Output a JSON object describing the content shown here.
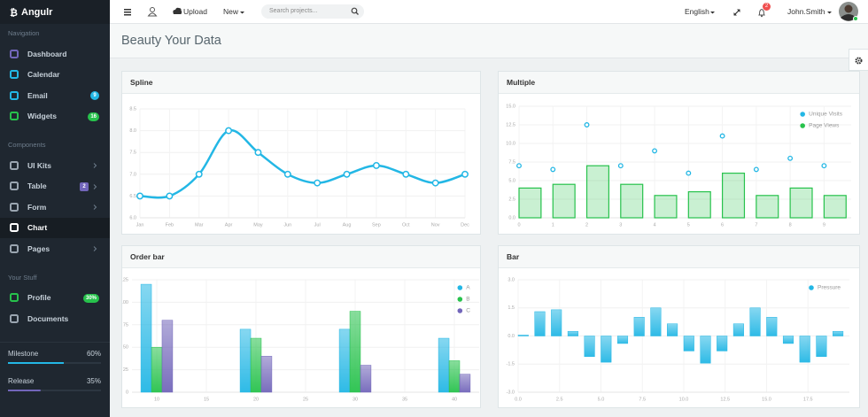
{
  "brand": "Angulr",
  "header": {
    "upload": "Upload",
    "new": "New",
    "search_placeholder": "Search projects...",
    "language": "English",
    "notification_count": "2",
    "user": "John.Smith"
  },
  "sidebar": {
    "sections": [
      {
        "title": "Navigation",
        "items": [
          {
            "label": "Dashboard"
          },
          {
            "label": "Calendar"
          },
          {
            "label": "Email",
            "badge": "9"
          },
          {
            "label": "Widgets",
            "badge": "16"
          }
        ]
      },
      {
        "title": "Components",
        "items": [
          {
            "label": "UI Kits",
            "submenu": true
          },
          {
            "label": "Table",
            "badge": "2",
            "submenu": true
          },
          {
            "label": "Form",
            "submenu": true
          },
          {
            "label": "Chart",
            "active": true
          },
          {
            "label": "Pages",
            "submenu": true
          }
        ]
      },
      {
        "title": "Your Stuff",
        "items": [
          {
            "label": "Profile",
            "badge": "30%"
          },
          {
            "label": "Documents"
          }
        ]
      }
    ],
    "progress": [
      {
        "label": "Milestone",
        "value": 60,
        "value_label": "60%",
        "color": "#23b7e5"
      },
      {
        "label": "Release",
        "value": 35,
        "value_label": "35%",
        "color": "#7266ba"
      }
    ]
  },
  "page_title": "Beauty Your Data",
  "chart_data": [
    {
      "type": "line",
      "title": "Spline",
      "categories": [
        "Jan",
        "Feb",
        "Mar",
        "Apr",
        "May",
        "Jun",
        "Jul",
        "Aug",
        "Sep",
        "Oct",
        "Nov",
        "Dec"
      ],
      "values": [
        6.5,
        6.5,
        7.0,
        8.0,
        7.5,
        7.0,
        6.8,
        7.0,
        7.2,
        7.0,
        6.8,
        7.0
      ],
      "color": "#23b7e5",
      "ylim": [
        6,
        8.5
      ],
      "yticks": [
        {
          "value": 6,
          "label": "6.0"
        },
        {
          "value": 6.5,
          "label": "6.5"
        },
        {
          "value": 7,
          "label": "7.0"
        },
        {
          "value": 7.5,
          "label": "7.5"
        },
        {
          "value": 8,
          "label": "8.0"
        },
        {
          "value": 8.5,
          "label": "8.5"
        }
      ],
      "grid": true
    },
    {
      "type": "combo",
      "title": "Multiple",
      "x": [
        0,
        1,
        2,
        3,
        4,
        5,
        6,
        7,
        8,
        9
      ],
      "xlim": [
        0,
        9.8
      ],
      "xticks": [
        0,
        1,
        2,
        3,
        4,
        5,
        6,
        7,
        8,
        9
      ],
      "ylim": [
        0,
        15
      ],
      "yticks": [
        {
          "value": 0,
          "label": "0.0"
        },
        {
          "value": 2.5,
          "label": "2.5"
        },
        {
          "value": 5,
          "label": "5.0"
        },
        {
          "value": 7.5,
          "label": "7.5"
        },
        {
          "value": 10,
          "label": "10.0"
        },
        {
          "value": 12.5,
          "label": "12.5"
        },
        {
          "value": 15,
          "label": "15.0"
        }
      ],
      "series": [
        {
          "name": "Unique Visits",
          "type": "scatter",
          "color": "#23b7e5",
          "values": [
            7,
            6.5,
            12.5,
            7,
            9,
            6,
            11,
            6.5,
            8,
            7
          ]
        },
        {
          "name": "Page Views",
          "type": "bar",
          "color": "#27c24c",
          "values": [
            4,
            4.5,
            7,
            4.5,
            3,
            3.5,
            6,
            3,
            4,
            3
          ]
        }
      ],
      "legend": "top-right",
      "grid": true
    },
    {
      "type": "bar",
      "title": "Order bar",
      "x": [
        10,
        20,
        30,
        40
      ],
      "xlim": [
        7.5,
        42.5
      ],
      "xticks": [
        10,
        15,
        20,
        25,
        30,
        35,
        40
      ],
      "ylim": [
        0,
        125
      ],
      "yticks": [
        0,
        25,
        50,
        75,
        100,
        125
      ],
      "series": [
        {
          "name": "A",
          "color": "#23b7e5",
          "values": [
            120,
            70,
            70,
            60
          ]
        },
        {
          "name": "B",
          "color": "#27c24c",
          "values": [
            50,
            60,
            90,
            35
          ]
        },
        {
          "name": "C",
          "color": "#7266ba",
          "values": [
            80,
            40,
            30,
            20
          ]
        }
      ],
      "legend": "top-right",
      "grid": true
    },
    {
      "type": "bar",
      "title": "Bar",
      "x": [
        0,
        1,
        2,
        3,
        4,
        5,
        6,
        7,
        8,
        9,
        10,
        11,
        12,
        13,
        14,
        15,
        16,
        17,
        18,
        19
      ],
      "xlim": [
        0,
        20
      ],
      "xticks": [
        {
          "value": 0,
          "label": "0.0"
        },
        {
          "value": 2.5,
          "label": "2.5"
        },
        {
          "value": 5,
          "label": "5.0"
        },
        {
          "value": 7.5,
          "label": "7.5"
        },
        {
          "value": 10,
          "label": "10.0"
        },
        {
          "value": 12.5,
          "label": "12.5"
        },
        {
          "value": 15,
          "label": "15.0"
        },
        {
          "value": 17.5,
          "label": "17.5"
        }
      ],
      "ylim": [
        -3,
        3
      ],
      "yticks": [
        {
          "value": -3,
          "label": "-3.0"
        },
        {
          "value": -1.5,
          "label": "-1.5"
        },
        {
          "value": 0,
          "label": "0.0"
        },
        {
          "value": 1.5,
          "label": "1.5"
        },
        {
          "value": 3,
          "label": "3.0"
        }
      ],
      "series": [
        {
          "name": "Pressure",
          "color": "#23b7e5",
          "values": [
            0.05,
            1.3,
            1.4,
            0.25,
            -1.1,
            -1.4,
            -0.4,
            1.0,
            1.5,
            0.65,
            -0.8,
            -1.45,
            -0.8,
            0.65,
            1.5,
            1.0,
            -0.4,
            -1.4,
            -1.1,
            0.25
          ]
        }
      ],
      "legend": "top-right",
      "grid": true
    }
  ]
}
